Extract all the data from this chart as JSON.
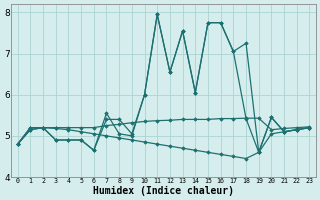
{
  "xlabel": "Humidex (Indice chaleur)",
  "ylabel": "",
  "background_color": "#d5eeed",
  "grid_color": "#aad4d2",
  "line_color": "#1e7070",
  "xlim": [
    -0.5,
    23.5
  ],
  "ylim": [
    4,
    8.2
  ],
  "yticks": [
    4,
    5,
    6,
    7,
    8
  ],
  "xticks": [
    0,
    1,
    2,
    3,
    4,
    5,
    6,
    7,
    8,
    9,
    10,
    11,
    12,
    13,
    14,
    15,
    16,
    17,
    18,
    19,
    20,
    21,
    22,
    23
  ],
  "series": [
    {
      "x": [
        0,
        1,
        2,
        3,
        4,
        5,
        6,
        7,
        8,
        9,
        10,
        11,
        12,
        13,
        14,
        15,
        16,
        17,
        18,
        19,
        20,
        21,
        22,
        23
      ],
      "y": [
        4.8,
        5.2,
        5.2,
        4.9,
        4.9,
        4.9,
        4.65,
        5.4,
        5.4,
        5.05,
        6.0,
        7.95,
        6.55,
        7.55,
        6.05,
        7.75,
        7.75,
        7.05,
        7.25,
        4.6,
        5.45,
        5.1,
        5.15,
        5.2
      ]
    },
    {
      "x": [
        0,
        1,
        2,
        3,
        4,
        5,
        6,
        7,
        8,
        9,
        10,
        11,
        12,
        13,
        14,
        15,
        16,
        17,
        18,
        19,
        20,
        21,
        22,
        23
      ],
      "y": [
        4.8,
        5.2,
        5.2,
        5.2,
        5.2,
        5.2,
        5.2,
        5.25,
        5.28,
        5.32,
        5.35,
        5.37,
        5.38,
        5.4,
        5.4,
        5.4,
        5.42,
        5.42,
        5.43,
        5.43,
        5.15,
        5.18,
        5.2,
        5.22
      ]
    },
    {
      "x": [
        0,
        1,
        2,
        3,
        4,
        5,
        6,
        7,
        8,
        9,
        10,
        11,
        12,
        13,
        14,
        15,
        16,
        17,
        18,
        19,
        20,
        21,
        22,
        23
      ],
      "y": [
        4.8,
        5.15,
        5.2,
        5.18,
        5.15,
        5.1,
        5.05,
        5.0,
        4.95,
        4.9,
        4.85,
        4.8,
        4.75,
        4.7,
        4.65,
        4.6,
        4.55,
        4.5,
        4.45,
        4.6,
        5.05,
        5.1,
        5.15,
        5.2
      ]
    },
    {
      "x": [
        0,
        1,
        2,
        3,
        4,
        5,
        6,
        7,
        8,
        9,
        10,
        11,
        12,
        13,
        14,
        15,
        16,
        17,
        18,
        19,
        20,
        21,
        22,
        23
      ],
      "y": [
        4.8,
        5.15,
        5.2,
        4.9,
        4.9,
        4.9,
        4.65,
        5.55,
        5.05,
        5.0,
        6.0,
        7.95,
        6.55,
        7.55,
        6.05,
        7.75,
        7.75,
        7.05,
        5.42,
        4.6,
        5.45,
        5.1,
        5.15,
        5.2
      ]
    }
  ]
}
